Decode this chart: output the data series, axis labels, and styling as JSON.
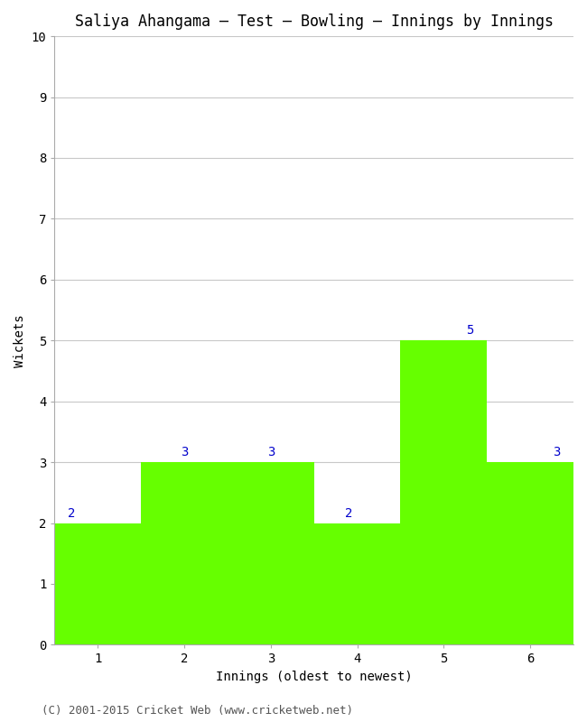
{
  "title": "Saliya Ahangama – Test – Bowling – Innings by Innings",
  "xlabel": "Innings (oldest to newest)",
  "ylabel": "Wickets",
  "categories": [
    "1",
    "2",
    "3",
    "4",
    "5",
    "6"
  ],
  "values": [
    2,
    3,
    3,
    2,
    5,
    3
  ],
  "bar_color": "#66ff00",
  "bar_edge_color": "#66ff00",
  "ylim": [
    0,
    10
  ],
  "yticks": [
    0,
    1,
    2,
    3,
    4,
    5,
    6,
    7,
    8,
    9,
    10
  ],
  "label_color": "#0000cc",
  "label_fontsize": 10,
  "title_fontsize": 12,
  "axis_label_fontsize": 10,
  "tick_fontsize": 10,
  "background_color": "#ffffff",
  "footer": "(C) 2001-2015 Cricket Web (www.cricketweb.net)",
  "footer_fontsize": 9,
  "grid_color": "#c8c8c8",
  "bar_width": 1.0
}
